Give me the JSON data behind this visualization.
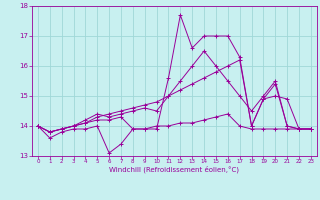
{
  "title": "",
  "xlabel": "Windchill (Refroidissement éolien,°C)",
  "background_color": "#c8f0f0",
  "grid_color": "#a0d8d8",
  "line_color": "#990099",
  "xlim": [
    -0.5,
    23.5
  ],
  "ylim": [
    13.0,
    18.0
  ],
  "yticks": [
    13,
    14,
    15,
    16,
    17,
    18
  ],
  "xticks": [
    0,
    1,
    2,
    3,
    4,
    5,
    6,
    7,
    8,
    9,
    10,
    11,
    12,
    13,
    14,
    15,
    16,
    17,
    18,
    19,
    20,
    21,
    22,
    23
  ],
  "series": [
    [
      14.0,
      13.6,
      13.8,
      13.9,
      13.9,
      14.0,
      13.1,
      13.4,
      13.9,
      13.9,
      13.9,
      15.6,
      17.7,
      16.6,
      17.0,
      17.0,
      17.0,
      16.3,
      14.0,
      14.9,
      15.4,
      14.0,
      13.9,
      13.9
    ],
    [
      14.0,
      13.8,
      13.9,
      14.0,
      14.1,
      14.2,
      14.2,
      14.3,
      13.9,
      13.9,
      14.0,
      14.0,
      14.1,
      14.1,
      14.2,
      14.3,
      14.4,
      14.0,
      13.9,
      13.9,
      13.9,
      13.9,
      13.9,
      13.9
    ],
    [
      14.0,
      13.8,
      13.9,
      14.0,
      14.1,
      14.3,
      14.4,
      14.5,
      14.6,
      14.7,
      14.8,
      15.0,
      15.2,
      15.4,
      15.6,
      15.8,
      16.0,
      16.2,
      14.0,
      14.9,
      15.0,
      14.9,
      13.9,
      13.9
    ],
    [
      14.0,
      13.8,
      13.9,
      14.0,
      14.2,
      14.4,
      14.3,
      14.4,
      14.5,
      14.6,
      14.5,
      15.0,
      15.5,
      16.0,
      16.5,
      16.0,
      15.5,
      15.0,
      14.5,
      15.0,
      15.5,
      14.0,
      13.9,
      13.9
    ]
  ]
}
